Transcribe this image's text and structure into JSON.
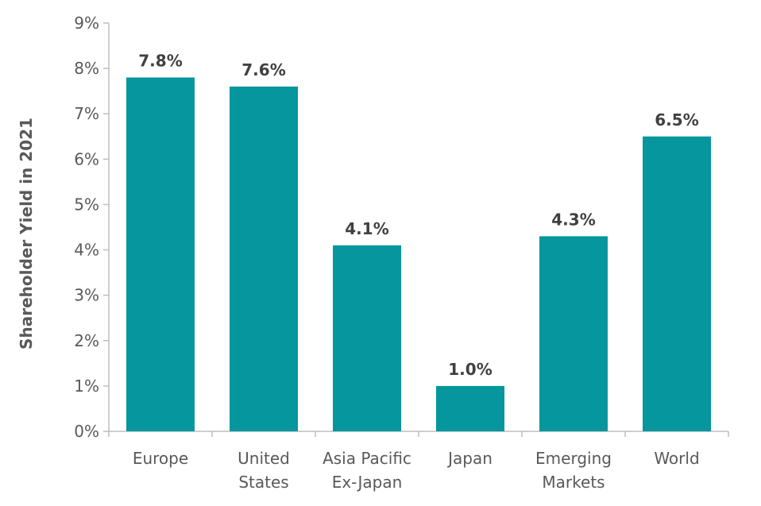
{
  "chart_data": {
    "type": "bar",
    "title": "",
    "xlabel": "",
    "ylabel": "Shareholder Yield in 2021",
    "categories": [
      [
        "Europe"
      ],
      [
        "United",
        "States"
      ],
      [
        "Asia Pacific",
        "Ex-Japan"
      ],
      [
        "Japan"
      ],
      [
        "Emerging",
        "Markets"
      ],
      [
        "World"
      ]
    ],
    "values": [
      7.8,
      7.6,
      4.1,
      1.0,
      4.3,
      6.5
    ],
    "value_labels": [
      "7.8%",
      "7.6%",
      "4.1%",
      "1.0%",
      "4.3%",
      "6.5%"
    ],
    "ylim": [
      0,
      9
    ],
    "y_ticks": [
      "0%",
      "1%",
      "2%",
      "3%",
      "4%",
      "5%",
      "6%",
      "7%",
      "8%",
      "9%"
    ],
    "grid": false,
    "legend": "none",
    "bar_color": "#05969E",
    "axis_color": "#BFBFBF"
  }
}
